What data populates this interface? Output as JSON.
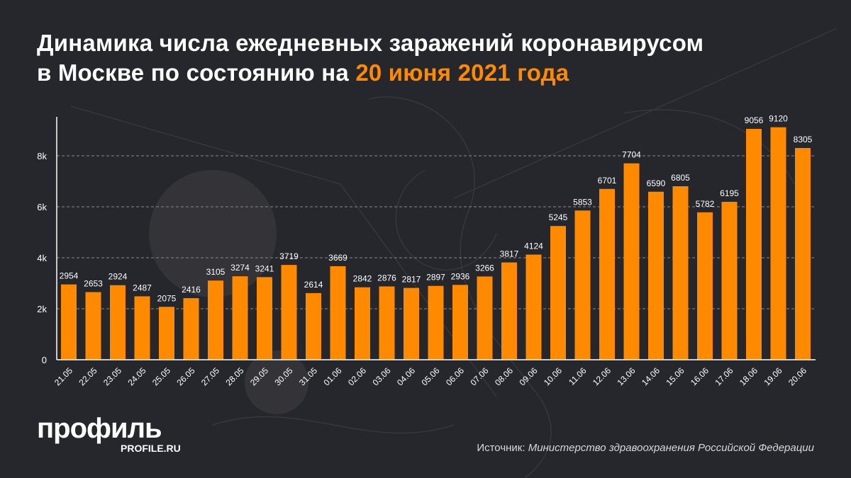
{
  "header": {
    "title_line1": "Динамика числа ежедневных заражений коронавирусом",
    "title_line2_prefix": "в Москве по состоянию на ",
    "title_line2_highlight": "20 июня 2021 года"
  },
  "footer": {
    "logo_main": "профиль",
    "logo_sub": "PROFILE.RU",
    "source_label": "Источник: ",
    "source_name": "Министерство здравоохранения Российской Федерации"
  },
  "colors": {
    "bar": "#ff8a00",
    "background": "#26262d",
    "highlight": "#ff8a00"
  },
  "chart_data": {
    "type": "bar",
    "title": "Динамика числа ежедневных заражений коронавирусом в Москве по состоянию на 20 июня 2021 года",
    "xlabel": "",
    "ylabel": "",
    "ylim": [
      0,
      9600
    ],
    "yticks": [
      0,
      2000,
      4000,
      6000,
      8000
    ],
    "ytick_labels": [
      "0",
      "2k",
      "4k",
      "6k",
      "8k"
    ],
    "grid": "horizontal dashed",
    "categories": [
      "21.05",
      "22.05",
      "23.05",
      "24.05",
      "25.05",
      "26.05",
      "27.05",
      "28.05",
      "29.05",
      "30.05",
      "31.05",
      "01.06",
      "02.06",
      "03.06",
      "04.06",
      "05.06",
      "06.06",
      "07.06",
      "08.06",
      "09.06",
      "10.06",
      "11.06",
      "12.06",
      "13.06",
      "14.06",
      "15.06",
      "16.06",
      "17.06",
      "18.06",
      "19.06",
      "20.06"
    ],
    "values": [
      2954,
      2653,
      2924,
      2487,
      2075,
      2416,
      3105,
      3274,
      3241,
      3719,
      2614,
      3669,
      2842,
      2876,
      2817,
      2897,
      2936,
      3266,
      3817,
      4124,
      5245,
      5853,
      6701,
      7704,
      6590,
      6805,
      5782,
      6195,
      9056,
      9120,
      8305
    ]
  }
}
